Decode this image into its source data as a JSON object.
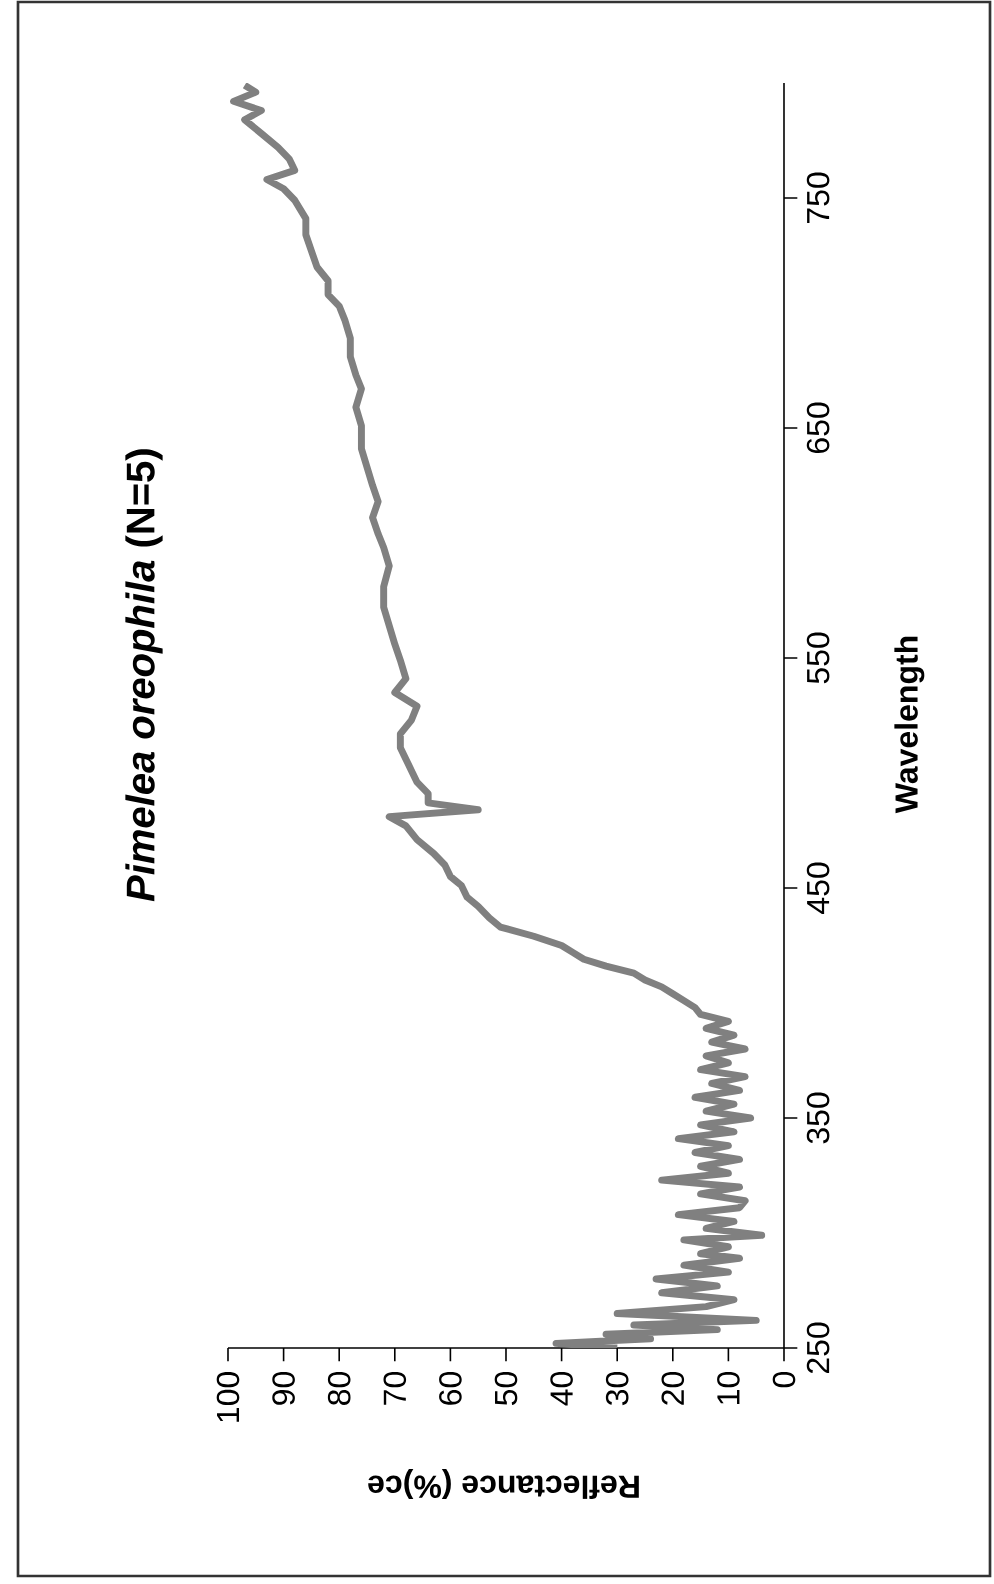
{
  "chart_data": {
    "type": "line",
    "title": "*Pimelea oreophila* (N=5)",
    "xlabel": "Reflectance (%)ce",
    "ylabel": "Wavelength",
    "xlim": [
      100,
      0
    ],
    "ylim": [
      250,
      800
    ],
    "xticks": [
      0,
      10,
      20,
      30,
      40,
      50,
      60,
      70,
      80,
      90,
      100
    ],
    "yticks": [
      250,
      350,
      450,
      550,
      650,
      750
    ],
    "line_style": "solid",
    "series": [
      {
        "color": "#808080",
        "x": [
          30,
          41,
          24,
          32,
          12,
          27,
          5,
          30,
          14,
          9,
          22,
          12,
          23,
          10,
          18,
          8,
          15,
          10,
          18,
          4,
          14,
          9,
          19,
          8,
          7,
          15,
          8,
          22,
          10,
          15,
          8,
          16,
          10,
          19,
          9,
          15,
          6,
          14,
          9,
          16,
          8,
          13,
          7,
          15,
          10,
          14,
          7,
          13,
          9,
          14,
          10,
          15,
          16,
          18,
          20,
          22,
          25,
          27,
          32,
          36,
          38,
          40,
          45,
          51,
          53,
          55,
          57,
          58,
          60,
          61,
          63,
          66,
          68,
          71,
          55,
          64,
          64,
          66,
          67,
          68,
          69,
          69,
          67,
          66,
          70,
          68,
          69,
          70,
          71,
          72,
          72,
          71,
          72,
          73,
          74,
          73,
          74,
          75,
          76,
          76,
          77,
          76,
          77,
          78,
          78,
          79,
          80,
          82,
          82,
          84,
          85,
          86,
          86,
          88,
          90,
          93,
          88,
          89,
          91,
          94,
          97,
          94,
          99,
          95,
          97
        ],
        "values": [
          250,
          252,
          254,
          256,
          258,
          260,
          262,
          265,
          268,
          271,
          274,
          277,
          280,
          283,
          286,
          289,
          291,
          294,
          297,
          299,
          302,
          305,
          308,
          311,
          314,
          317,
          320,
          323,
          326,
          329,
          332,
          335,
          338,
          341,
          344,
          347,
          350,
          353,
          356,
          359,
          362,
          365,
          368,
          371,
          374,
          377,
          380,
          383,
          386,
          389,
          392,
          395,
          398,
          401,
          404,
          407,
          410,
          413,
          416,
          419,
          422,
          425,
          429,
          433,
          437,
          442,
          446,
          451,
          455,
          460,
          465,
          471,
          477,
          481,
          484,
          487,
          491,
          496,
          501,
          506,
          511,
          517,
          523,
          529,
          535,
          541,
          549,
          556,
          564,
          572,
          581,
          590,
          598,
          604,
          611,
          618,
          625,
          633,
          641,
          651,
          659,
          667,
          673,
          681,
          689,
          697,
          703,
          708,
          714,
          720,
          727,
          734,
          741,
          749,
          754,
          758,
          762,
          767,
          772,
          778,
          784,
          788,
          792,
          796,
          799
        ]
      }
    ]
  }
}
